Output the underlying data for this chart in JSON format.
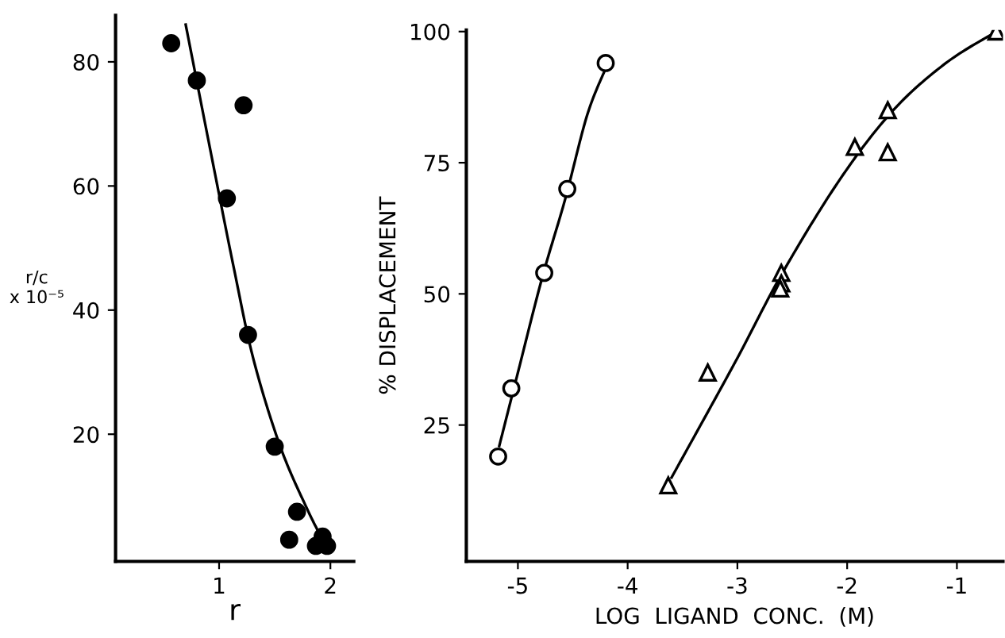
{
  "chart_data": [
    {
      "type": "scatter",
      "xlabel": "r",
      "ylabel": "r/c\nx 10⁻⁵",
      "xlim": [
        0.07,
        2.21
      ],
      "ylim": [
        -0.5,
        87.5
      ],
      "xticks": [
        1,
        2
      ],
      "yticks": [
        20,
        40,
        60,
        80
      ],
      "grid": false,
      "legend": false,
      "series": [
        {
          "marker": "circle",
          "color": "#000000",
          "x": [
            0.57,
            0.8,
            1.22,
            1.07,
            1.26,
            1.5,
            1.7,
            1.63,
            1.87,
            1.93,
            1.97
          ],
          "values": [
            83,
            77,
            73,
            58,
            36,
            18,
            7.5,
            3,
            2,
            3.5,
            2
          ]
        },
        {
          "type": "line",
          "marker": "none",
          "color": "#000000",
          "x": [
            0.7,
            0.93,
            1.13,
            1.31,
            1.55,
            1.79,
            1.96
          ],
          "values": [
            86,
            65,
            47,
            32,
            18,
            8,
            2
          ]
        }
      ]
    },
    {
      "type": "scatter",
      "xlabel": "LOG  LIGAND  CONC.  (M)",
      "ylabel": "% DISPLACEMENT",
      "xlim": [
        -5.47,
        -0.58
      ],
      "ylim": [
        -1,
        100.3
      ],
      "xticks": [
        -5,
        -4,
        -3,
        -2,
        -1
      ],
      "yticks": [
        25,
        50,
        75,
        100
      ],
      "grid": false,
      "legend": false,
      "series": [
        {
          "marker": "circle",
          "color": "#ffffff",
          "x": [
            -5.18,
            -5.06,
            -4.76,
            -4.55,
            -4.2
          ],
          "values": [
            19,
            32,
            54,
            70,
            94
          ]
        },
        {
          "type": "line",
          "marker": "none",
          "color": "#000000",
          "x": [
            -5.17,
            -5.0,
            -4.78,
            -4.57,
            -4.37,
            -4.2
          ],
          "values": [
            21,
            35,
            53,
            68,
            84,
            93
          ]
        },
        {
          "marker": "triangle",
          "color": "#ffffff",
          "x": [
            -3.63,
            -3.27,
            -2.6,
            -2.6,
            -2.61,
            -1.93,
            -1.63,
            -1.63,
            -0.64
          ],
          "values": [
            13.5,
            35,
            54,
            52,
            51,
            78,
            85,
            77,
            100
          ]
        },
        {
          "type": "line",
          "marker": "none",
          "color": "#000000",
          "x": [
            -3.6,
            -3.02,
            -2.59,
            -2.06,
            -1.58,
            -1.1,
            -0.64
          ],
          "values": [
            15,
            37,
            54,
            72,
            85,
            94,
            100
          ]
        }
      ]
    }
  ]
}
